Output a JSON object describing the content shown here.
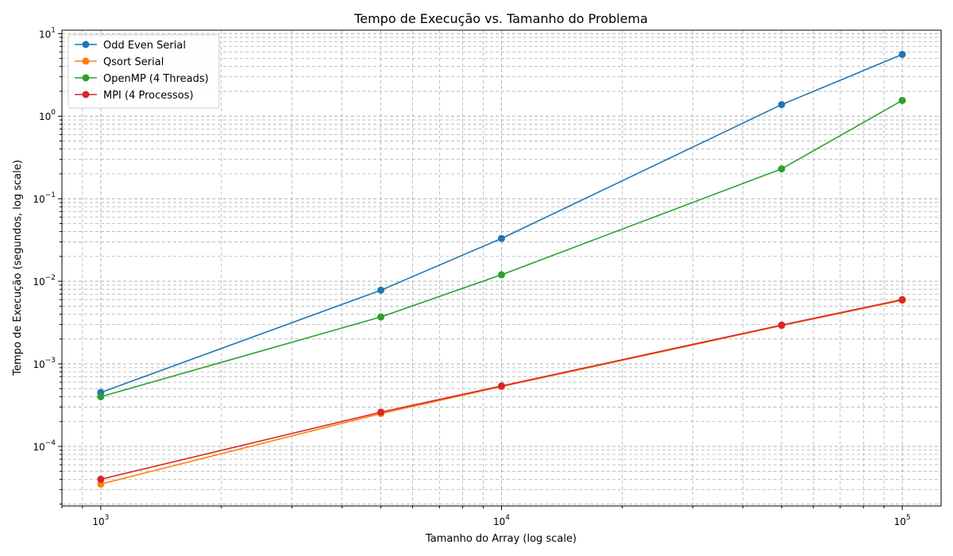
{
  "chart_data": {
    "type": "line",
    "title": "Tempo de Execução vs. Tamanho do Problema",
    "xlabel": "Tamanho do Array (log scale)",
    "ylabel": "Tempo de Execução (segundos, log scale)",
    "x_scale": "log",
    "y_scale": "log",
    "xlim": [
      800,
      125000
    ],
    "ylim": [
      1.9e-05,
      11
    ],
    "grid": true,
    "legend_position": "top-left",
    "x_ticks": [
      {
        "base": "10",
        "exp": "3",
        "value": 1000
      },
      {
        "base": "10",
        "exp": "4",
        "value": 10000
      },
      {
        "base": "10",
        "exp": "5",
        "value": 100000
      }
    ],
    "y_ticks": [
      {
        "base": "10",
        "exp": "−4",
        "value": 0.0001
      },
      {
        "base": "10",
        "exp": "−3",
        "value": 0.001
      },
      {
        "base": "10",
        "exp": "−2",
        "value": 0.01
      },
      {
        "base": "10",
        "exp": "−1",
        "value": 0.1
      },
      {
        "base": "10",
        "exp": "0",
        "value": 1
      },
      {
        "base": "10",
        "exp": "1",
        "value": 10
      }
    ],
    "x": [
      1000,
      5000,
      10000,
      50000,
      100000
    ],
    "series": [
      {
        "name": "Odd Even Serial",
        "color": "#1f77b4",
        "values": [
          0.00045,
          0.0078,
          0.033,
          1.38,
          5.6
        ]
      },
      {
        "name": "Qsort Serial",
        "color": "#ff7f0e",
        "values": [
          3.5e-05,
          0.00025,
          0.00053,
          0.0029,
          0.0059
        ]
      },
      {
        "name": "OpenMP (4 Threads)",
        "color": "#2ca02c",
        "values": [
          0.0004,
          0.0037,
          0.012,
          0.23,
          1.55
        ]
      },
      {
        "name": "MPI (4 Processos)",
        "color": "#d62728",
        "values": [
          4e-05,
          0.00026,
          0.00054,
          0.00295,
          0.006
        ]
      }
    ]
  }
}
